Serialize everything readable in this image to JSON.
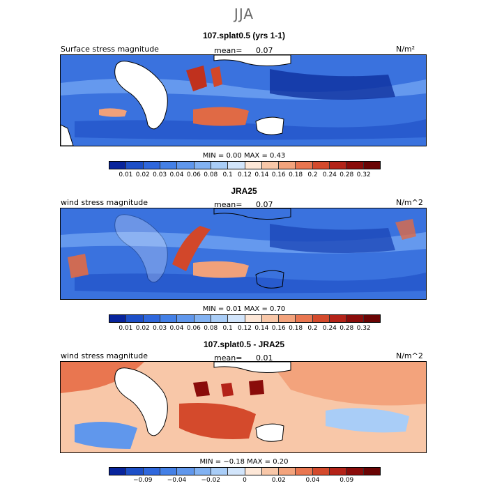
{
  "season": "JJA",
  "units_note": "",
  "panels": [
    {
      "title": "107.splat0.5 (yrs 1-1)",
      "label": "Surface stress magnitude",
      "mean_label": "mean=",
      "mean_value": "0.07",
      "units": "N/m²",
      "min_label": "MIN =",
      "min_value": "0.00",
      "max_label": "MAX =",
      "max_value": "0.43",
      "colorbar_ticks": [
        "0.01",
        "0.02",
        "0.03",
        "0.04",
        "0.06",
        "0.08",
        "0.1",
        "0.12",
        "0.14",
        "0.16",
        "0.18",
        "0.2",
        "0.24",
        "0.28",
        "0.32"
      ],
      "colorbar_colors": [
        "#08249c",
        "#1d4fc7",
        "#2f67dc",
        "#4480e6",
        "#6097ec",
        "#82b2f2",
        "#a9cdf7",
        "#d2e5fb",
        "#fde7d7",
        "#f8c7a8",
        "#f3a37c",
        "#e97650",
        "#d44a2c",
        "#b42318",
        "#8a0c0a",
        "#6a0404"
      ]
    },
    {
      "title": "JRA25",
      "label": "wind stress magnitude",
      "mean_label": "mean=",
      "mean_value": "0.07",
      "units": "N/m^2",
      "min_label": "MIN =",
      "min_value": "0.01",
      "max_label": "MAX =",
      "max_value": "0.70",
      "colorbar_ticks": [
        "0.01",
        "0.02",
        "0.03",
        "0.04",
        "0.06",
        "0.08",
        "0.1",
        "0.12",
        "0.14",
        "0.16",
        "0.18",
        "0.2",
        "0.24",
        "0.28",
        "0.32"
      ],
      "colorbar_colors": [
        "#08249c",
        "#1d4fc7",
        "#2f67dc",
        "#4480e6",
        "#6097ec",
        "#82b2f2",
        "#a9cdf7",
        "#d2e5fb",
        "#fde7d7",
        "#f8c7a8",
        "#f3a37c",
        "#e97650",
        "#d44a2c",
        "#b42318",
        "#8a0c0a",
        "#6a0404"
      ]
    },
    {
      "title": "107.splat0.5 - JRA25",
      "label": "wind stress magnitude",
      "mean_label": "mean=",
      "mean_value": "0.01",
      "units": "N/m^2",
      "min_label": "MIN =",
      "min_value": "−0.18",
      "max_label": "MAX =",
      "max_value": "0.20",
      "colorbar_ticks": [
        "−0.09",
        "−0.04",
        "−0.02",
        "0",
        "0.02",
        "0.04",
        "0.09"
      ],
      "colorbar_colors": [
        "#08249c",
        "#1d4fc7",
        "#2f67dc",
        "#4480e6",
        "#6097ec",
        "#82b2f2",
        "#a9cdf7",
        "#d2e5fb",
        "#fde7d7",
        "#f8c7a8",
        "#f3a37c",
        "#e97650",
        "#d44a2c",
        "#b42318",
        "#8a0c0a",
        "#6a0404"
      ]
    }
  ]
}
